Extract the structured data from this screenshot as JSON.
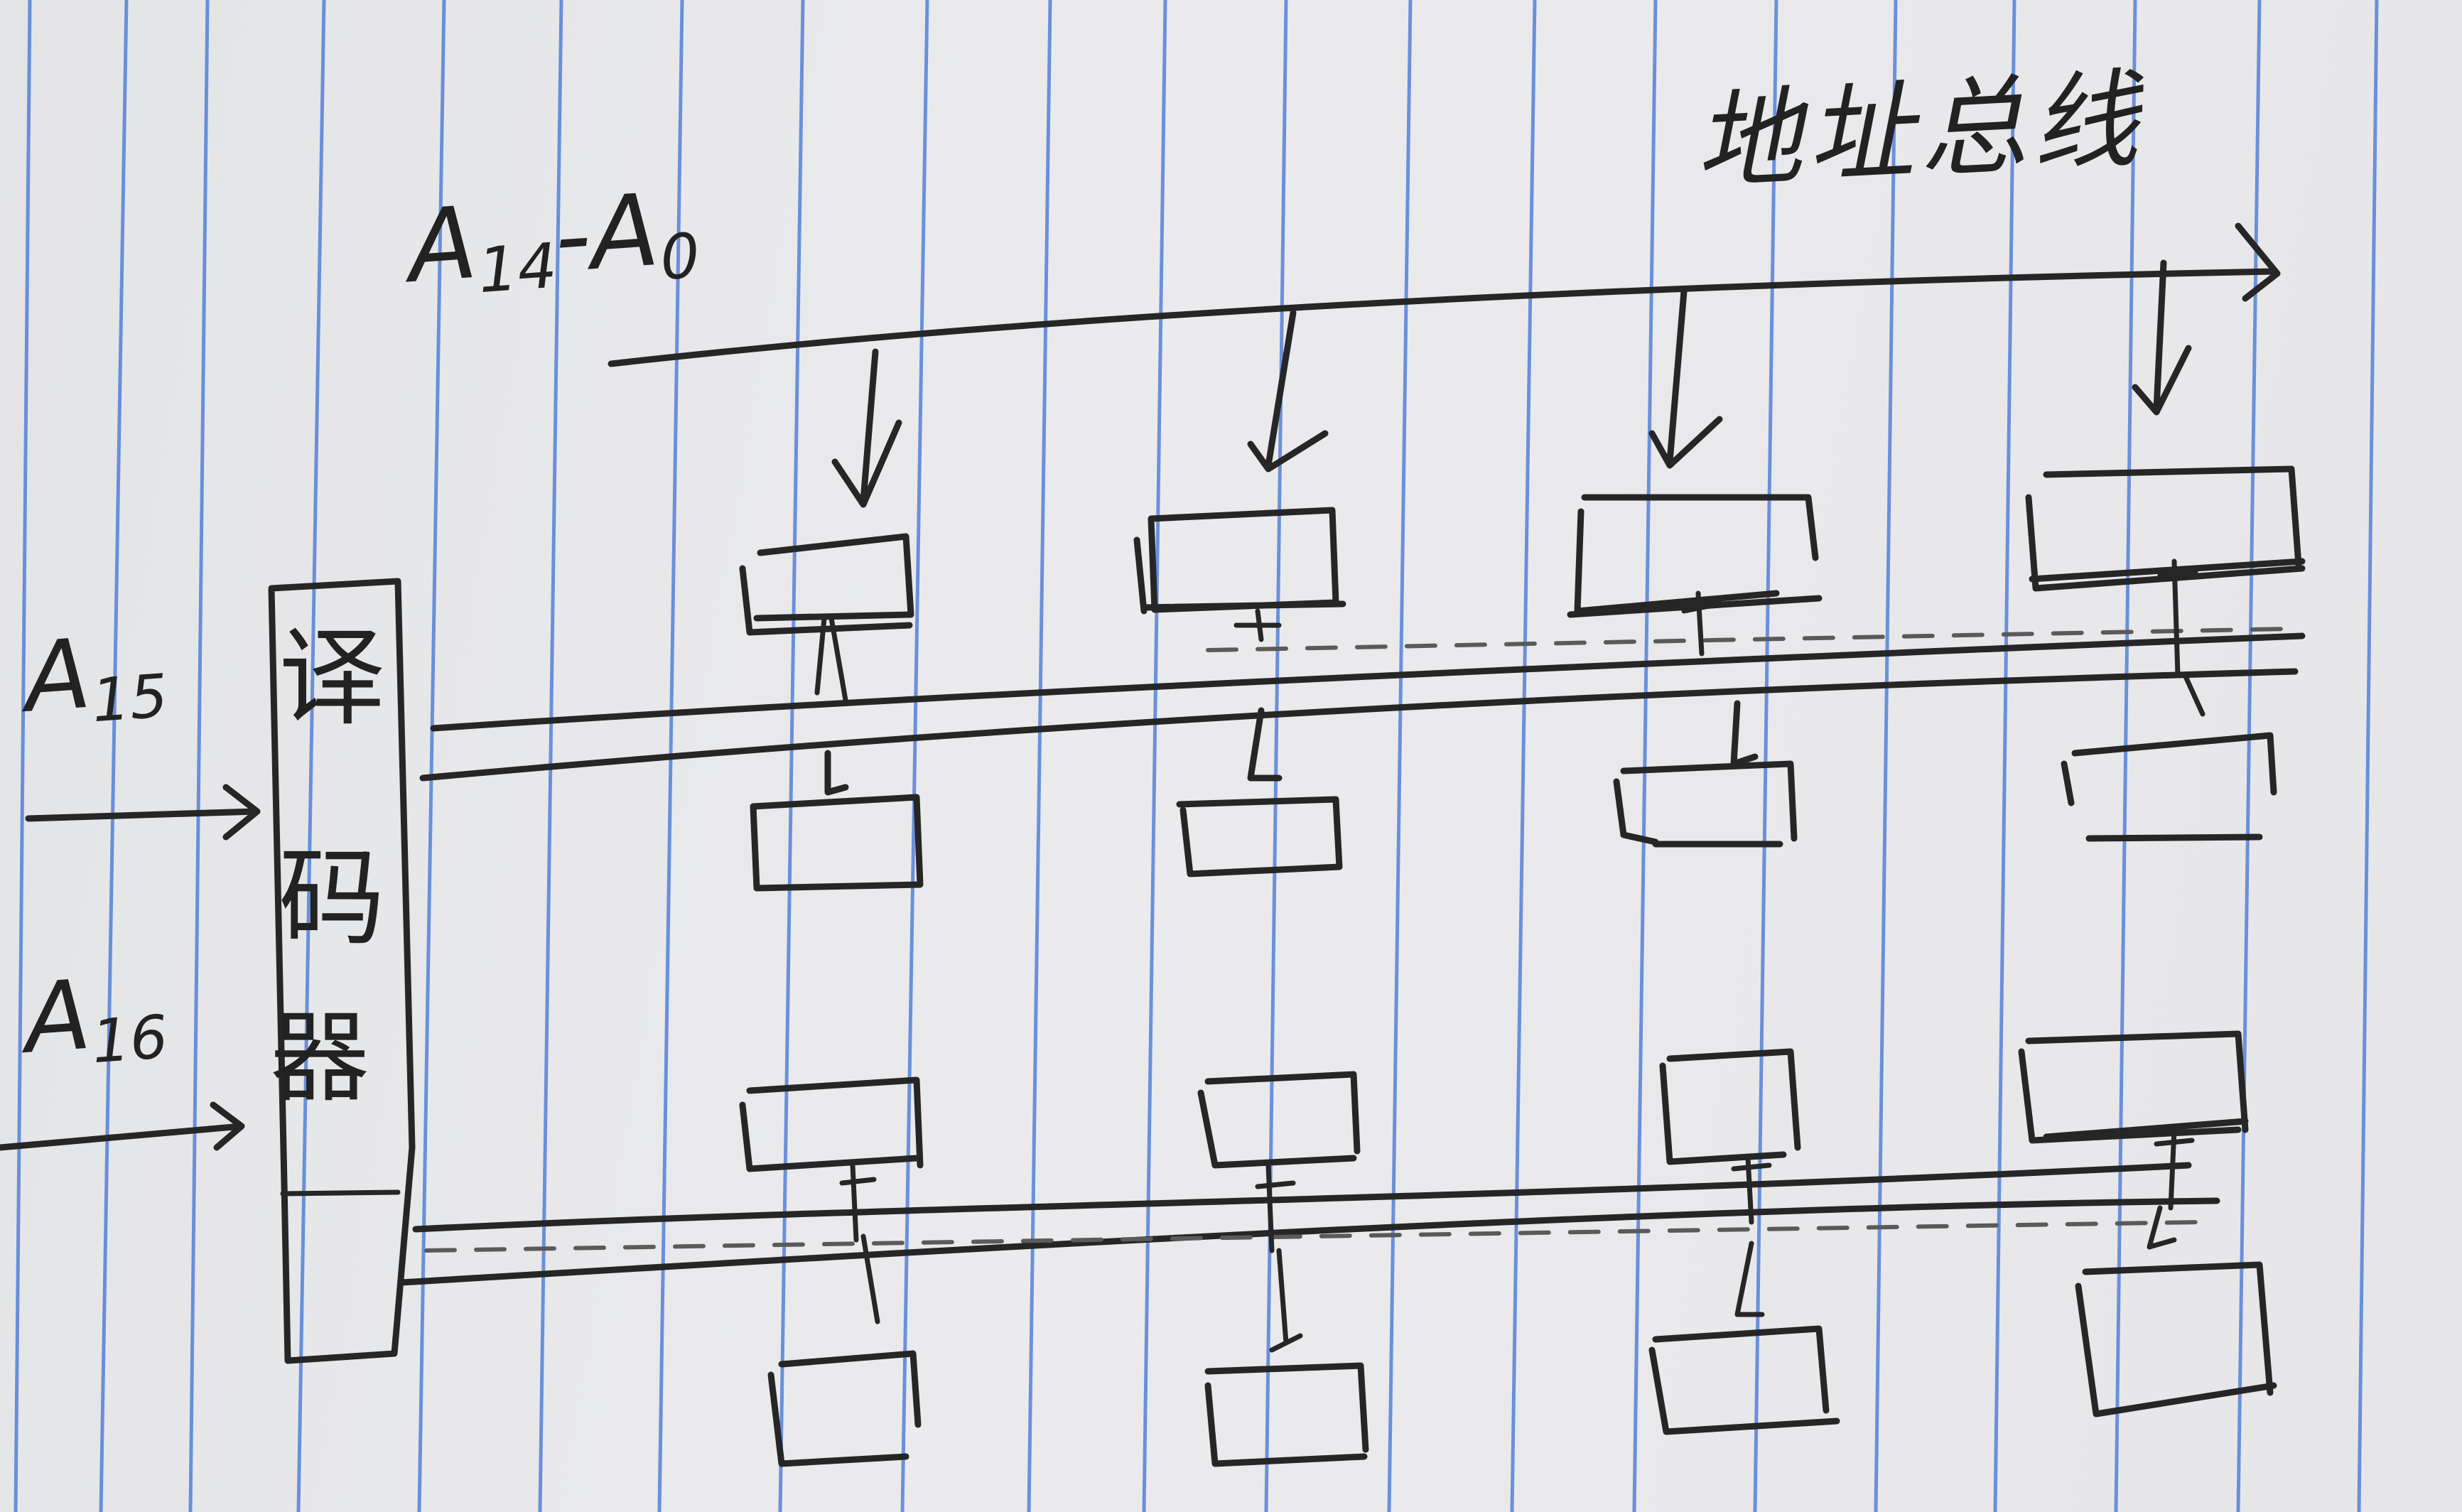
{
  "labels": {
    "address_bus": "地址总线",
    "address_lines_main": "A",
    "address_lines_sub_hi": "14",
    "address_lines_dash": "-",
    "address_lines_main2": "A",
    "address_lines_sub_lo": "0",
    "input_a15_main": "A",
    "input_a15_sub": "15",
    "input_a16_main": "A",
    "input_a16_sub": "16",
    "decoder_char_1": "译",
    "decoder_char_2": "码",
    "decoder_char_3": "器"
  },
  "colors": {
    "ink": "#262626",
    "paper": "#e7e8ea",
    "rule_line": "#3f73d6"
  },
  "layout": {
    "columns": 4,
    "chip_rows": 2,
    "chips_per_group": 2
  }
}
